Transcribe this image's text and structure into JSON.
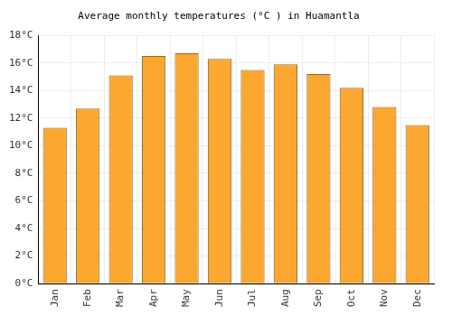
{
  "chart_data": {
    "type": "bar",
    "title": "Average monthly temperatures (°C ) in Huamantla",
    "categories": [
      "Jan",
      "Feb",
      "Mar",
      "Apr",
      "May",
      "Jun",
      "Jul",
      "Aug",
      "Sep",
      "Oct",
      "Nov",
      "Dec"
    ],
    "values": [
      11.3,
      12.7,
      15.1,
      16.5,
      16.7,
      16.3,
      15.5,
      15.9,
      15.2,
      14.2,
      12.8,
      11.5
    ],
    "color": "#fba730",
    "ylim": [
      0,
      18
    ],
    "yticks": [
      {
        "value": 0,
        "label": "0°C"
      },
      {
        "value": 2,
        "label": "2°C"
      },
      {
        "value": 4,
        "label": "4°C"
      },
      {
        "value": 6,
        "label": "6°C"
      },
      {
        "value": 8,
        "label": "8°C"
      },
      {
        "value": 10,
        "label": "10°C"
      },
      {
        "value": 12,
        "label": "12°C"
      },
      {
        "value": 14,
        "label": "14°C"
      },
      {
        "value": 16,
        "label": "16°C"
      },
      {
        "value": 18,
        "label": "18°C"
      }
    ],
    "grid": true
  }
}
